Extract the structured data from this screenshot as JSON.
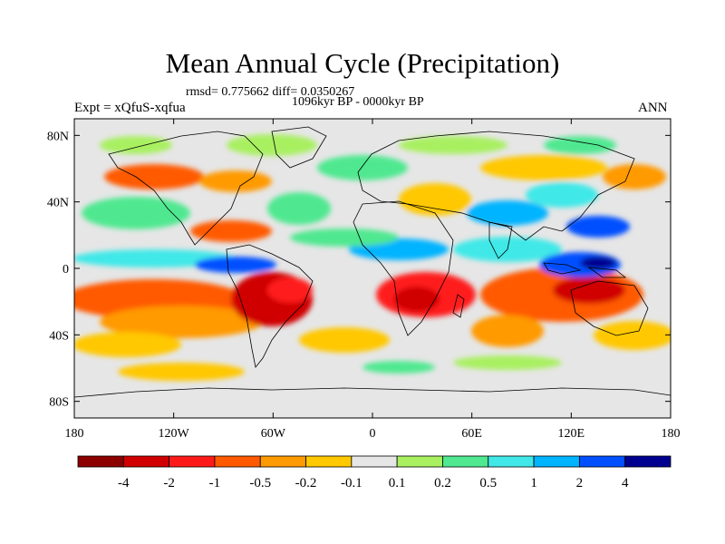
{
  "header": {
    "title": "Mean Annual Cycle (Precipitation)",
    "stats": "rmsd= 0.775662  diff= 0.0350267",
    "period": "1096kyr BP - 0000kyr BP",
    "experiment": "Expt = xQfuS-xqfua",
    "season": "ANN"
  },
  "axes": {
    "lat_labels": [
      "80N",
      "40N",
      "0",
      "40S",
      "80S"
    ],
    "lat_values": [
      80,
      40,
      0,
      -40,
      -80
    ],
    "lon_labels": [
      "180",
      "120W",
      "60W",
      "0",
      "60E",
      "120E",
      "180"
    ],
    "lon_values": [
      -180,
      -120,
      -60,
      0,
      60,
      120,
      180
    ]
  },
  "legend": {
    "colors": [
      "#8c0000",
      "#d00000",
      "#ff1a1a",
      "#ff5a00",
      "#ff9a00",
      "#ffc800",
      "#e6e6e6",
      "#a8f060",
      "#50e890",
      "#40e8e8",
      "#00b4ff",
      "#0050ff",
      "#000090"
    ],
    "labels": [
      "-4",
      "-2",
      "-1",
      "-0.5",
      "-0.2",
      "-0.1",
      "0.1",
      "0.2",
      "0.5",
      "1",
      "2",
      "4"
    ]
  }
}
